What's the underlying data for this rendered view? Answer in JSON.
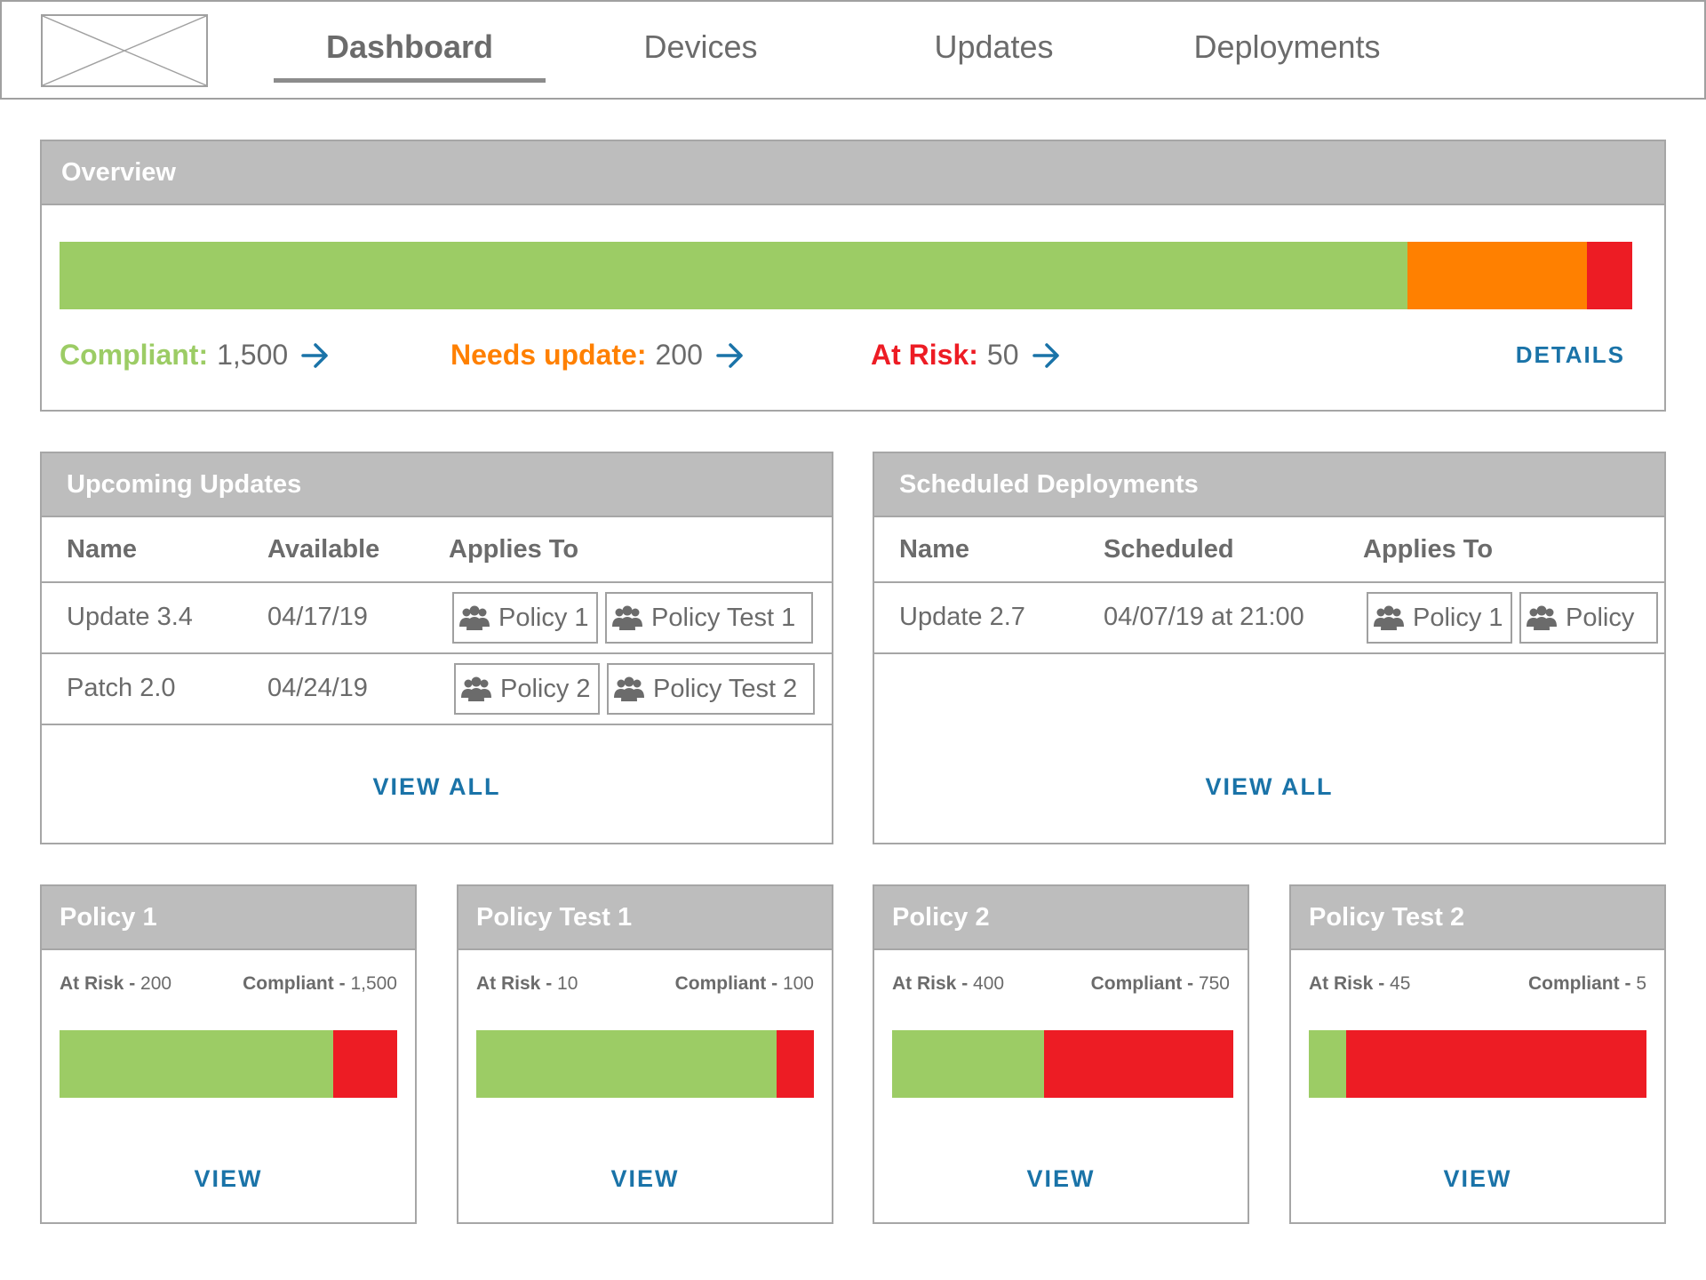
{
  "nav": {
    "logo_icon": "image-placeholder-icon",
    "tabs": [
      {
        "label": "Dashboard",
        "active": true
      },
      {
        "label": "Devices",
        "active": false
      },
      {
        "label": "Updates",
        "active": false
      },
      {
        "label": "Deployments",
        "active": false
      }
    ]
  },
  "colors": {
    "compliant": "#9ccc65",
    "needs_update": "#ff8000",
    "at_risk": "#ed1c24",
    "link": "#1a73a8",
    "header_bg": "#bdbdbd"
  },
  "overview": {
    "title": "Overview",
    "compliant_label": "Compliant:",
    "compliant_value": "1,500",
    "needs_update_label": "Needs update:",
    "needs_update_value": "200",
    "at_risk_label": "At Risk:",
    "at_risk_value": "50",
    "details_label": "DETAILS",
    "bar_segments": [
      {
        "name": "compliant",
        "value": 1500
      },
      {
        "name": "needs_update",
        "value": 200
      },
      {
        "name": "at_risk",
        "value": 50
      }
    ]
  },
  "upcoming_updates": {
    "title": "Upcoming Updates",
    "columns": [
      "Name",
      "Available",
      "Applies To"
    ],
    "rows": [
      {
        "name": "Update 3.4",
        "date": "04/17/19",
        "applies": [
          "Policy 1",
          "Policy Test 1"
        ]
      },
      {
        "name": "Patch 2.0",
        "date": "04/24/19",
        "applies": [
          "Policy 2",
          "Policy Test 2"
        ]
      }
    ],
    "view_all": "VIEW ALL"
  },
  "scheduled_deployments": {
    "title": "Scheduled Deployments",
    "columns": [
      "Name",
      "Scheduled",
      "Applies To"
    ],
    "rows": [
      {
        "name": "Update 2.7",
        "date": "04/07/19 at 21:00",
        "applies": [
          "Policy 1",
          "Policy"
        ]
      }
    ],
    "view_all": "VIEW ALL"
  },
  "policies": [
    {
      "title": "Policy 1",
      "at_risk_label": "At Risk",
      "at_risk": "200",
      "compliant_label": "Compliant",
      "compliant": "1,500",
      "compliant_fraction": 0.81,
      "view": "VIEW"
    },
    {
      "title": "Policy Test 1",
      "at_risk_label": "At Risk",
      "at_risk": "10",
      "compliant_label": "Compliant",
      "compliant": "100",
      "compliant_fraction": 0.89,
      "view": "VIEW"
    },
    {
      "title": "Policy 2",
      "at_risk_label": "At Risk",
      "at_risk": "400",
      "compliant_label": "Compliant",
      "compliant": "750",
      "compliant_fraction": 0.445,
      "view": "VIEW"
    },
    {
      "title": "Policy Test 2",
      "at_risk_label": "At Risk",
      "at_risk": "45",
      "compliant_label": "Compliant",
      "compliant": "5",
      "compliant_fraction": 0.11,
      "view": "VIEW"
    }
  ],
  "group_icon": "users-group-icon",
  "arrow_icon": "arrow-right-icon"
}
